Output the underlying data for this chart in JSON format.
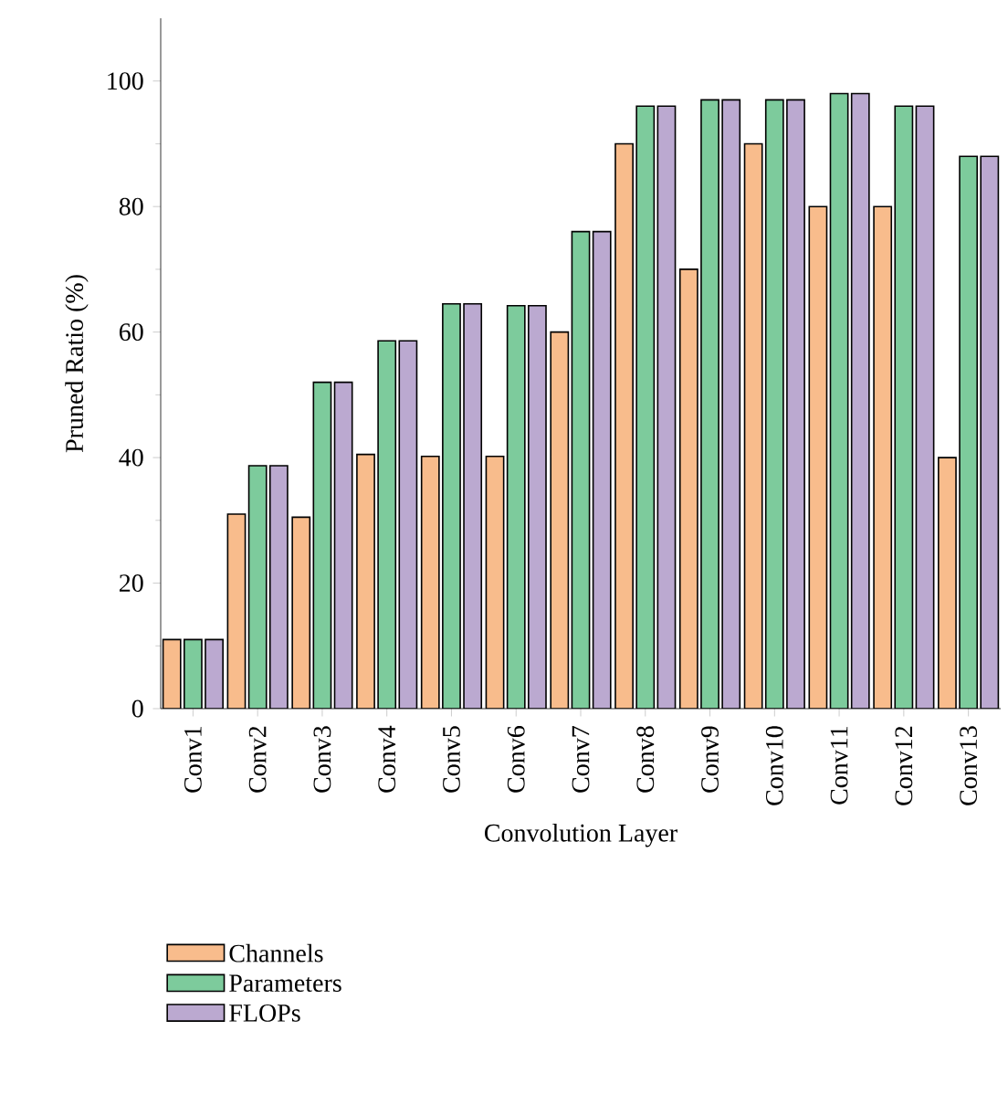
{
  "chart_data": {
    "type": "bar",
    "xlabel": "Convolution Layer",
    "ylabel": "Pruned Ratio (%)",
    "categories": [
      "Conv1",
      "Conv2",
      "Conv3",
      "Conv4",
      "Conv5",
      "Conv6",
      "Conv7",
      "Conv8",
      "Conv9",
      "Conv10",
      "Conv11",
      "Conv12",
      "Conv13"
    ],
    "series": [
      {
        "name": "Channels",
        "color": "#f8bc8c",
        "values": [
          11,
          31,
          30.5,
          40.5,
          40.2,
          40.2,
          60,
          90,
          70,
          90,
          80,
          80,
          40
        ]
      },
      {
        "name": "Parameters",
        "color": "#7dcb9c",
        "values": [
          11,
          38.7,
          52,
          58.6,
          64.5,
          64.2,
          76,
          96,
          97,
          97,
          98,
          96,
          88
        ]
      },
      {
        "name": "FLOPs",
        "color": "#bba9d0",
        "values": [
          11,
          38.7,
          52,
          58.6,
          64.5,
          64.2,
          76,
          96,
          97,
          97,
          98,
          96,
          88
        ]
      }
    ],
    "ylim": [
      0,
      110
    ],
    "yticks": [
      0,
      20,
      40,
      60,
      80,
      100
    ],
    "grid": false,
    "legend": "bottom"
  }
}
